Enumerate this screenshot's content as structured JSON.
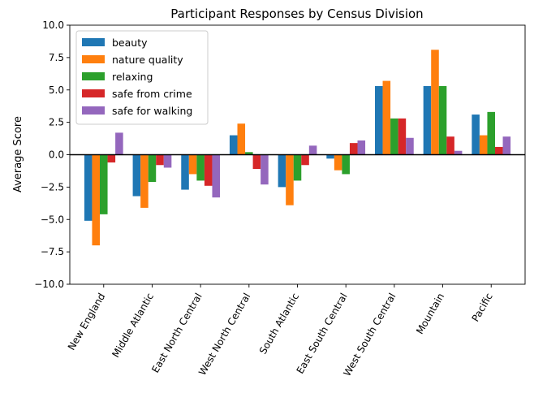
{
  "chart_data": {
    "type": "bar",
    "title": "Participant Responses by Census Division",
    "xlabel": "",
    "ylabel": "Average Score",
    "ylim": [
      -10,
      10
    ],
    "yticks": [
      -10.0,
      -7.5,
      -5.0,
      -2.5,
      0.0,
      2.5,
      5.0,
      7.5,
      10.0
    ],
    "ytick_labels": [
      "−10.0",
      "−7.5",
      "−5.0",
      "−2.5",
      "0.0",
      "2.5",
      "5.0",
      "7.5",
      "10.0"
    ],
    "grid": false,
    "legend_position": "top-left",
    "zero_line": true,
    "categories": [
      "New England",
      "Middle Atlantic",
      "East North Central",
      "West North Central",
      "South Atlantic",
      "East South Central",
      "West South Central",
      "Mountain",
      "Pacific"
    ],
    "series": [
      {
        "name": "beauty",
        "color": "#1f77b4",
        "values": [
          -5.1,
          -3.2,
          -2.7,
          1.5,
          -2.5,
          -0.3,
          5.3,
          5.3,
          3.1
        ]
      },
      {
        "name": "nature quality",
        "color": "#ff7f0e",
        "values": [
          -7.0,
          -4.1,
          -1.5,
          2.4,
          -3.9,
          -1.2,
          5.7,
          8.1,
          1.5
        ]
      },
      {
        "name": "relaxing",
        "color": "#2ca02c",
        "values": [
          -4.6,
          -2.1,
          -2.0,
          0.2,
          -2.0,
          -1.5,
          2.8,
          5.3,
          3.3
        ]
      },
      {
        "name": "safe from crime",
        "color": "#d62728",
        "values": [
          -0.6,
          -0.8,
          -2.4,
          -1.1,
          -0.8,
          0.9,
          2.8,
          1.4,
          0.6
        ]
      },
      {
        "name": "safe for walking",
        "color": "#9467bd",
        "values": [
          1.7,
          -1.0,
          -3.3,
          -2.3,
          0.7,
          1.1,
          1.3,
          0.3,
          1.4
        ]
      }
    ]
  }
}
